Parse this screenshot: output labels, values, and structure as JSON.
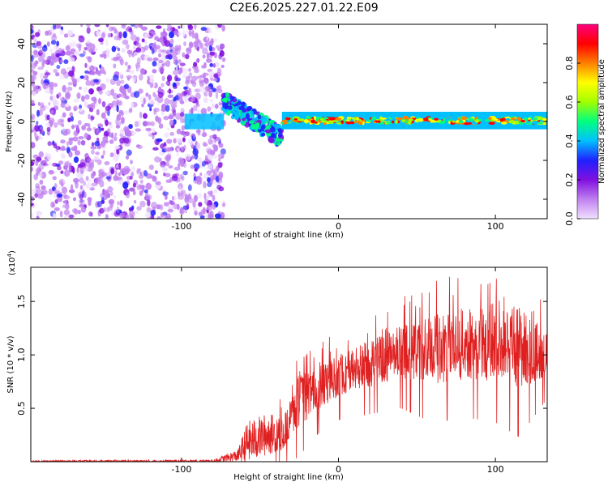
{
  "title": "C2E6.2025.227.01.22.E09",
  "chart_data": [
    {
      "type": "heatmap",
      "xlabel": "Height of straight line (km)",
      "ylabel": "Frequency (Hz)",
      "xlim": [
        -196,
        133
      ],
      "ylim": [
        -50,
        50
      ],
      "xticks": [
        -100,
        0,
        100
      ],
      "yticks": [
        -40,
        -20,
        0,
        20,
        40
      ],
      "colorbar": {
        "label": "Normalized spectral amplitude",
        "range": [
          0,
          1
        ],
        "ticks": [
          "0.0",
          "0.2",
          "0.4",
          "0.6",
          "0.8"
        ],
        "colors": [
          "#f0e0ff",
          "#c080f0",
          "#8010e0",
          "#2020ff",
          "#00c0ff",
          "#00ff80",
          "#a0ff00",
          "#ffff00",
          "#ff8000",
          "#ff0000",
          "#ff0080"
        ]
      },
      "regions": [
        {
          "name": "noise",
          "x": [
            -196,
            -73
          ],
          "freq": [
            -50,
            50
          ],
          "amplitude": [
            0.02,
            0.15
          ]
        },
        {
          "name": "onset",
          "x": [
            -73,
            -36
          ],
          "freq_start": 10,
          "freq_end": -8,
          "amplitude": [
            0.2,
            0.55
          ]
        },
        {
          "name": "steady",
          "x": [
            -36,
            133
          ],
          "freq": [
            -1,
            2
          ],
          "amplitude": [
            0.4,
            0.95
          ]
        }
      ]
    },
    {
      "type": "line",
      "xlabel": "Height of straight line (km)",
      "ylabel": "SNR (10 * v/v)",
      "y_multiplier": "(x10",
      "y_exponent": "4",
      "xlim": [
        -196,
        133
      ],
      "ylim": [
        0,
        1.82
      ],
      "xticks": [
        -100,
        0,
        100
      ],
      "yticks": [
        "0.5",
        "1.0",
        "1.5"
      ],
      "series": [
        {
          "color": "#e02020",
          "envelope": [
            {
              "x": -196,
              "base": 0.0,
              "amp": 0.02
            },
            {
              "x": -80,
              "base": 0.0,
              "amp": 0.03
            },
            {
              "x": -64,
              "base": 0.04,
              "amp": 0.12
            },
            {
              "x": -58,
              "base": 0.12,
              "amp": 0.4
            },
            {
              "x": -45,
              "base": 0.2,
              "amp": 0.4
            },
            {
              "x": -35,
              "base": 0.22,
              "amp": 0.3
            },
            {
              "x": -25,
              "base": 0.5,
              "amp": 0.5
            },
            {
              "x": -15,
              "base": 0.6,
              "amp": 0.4
            },
            {
              "x": 0,
              "base": 0.75,
              "amp": 0.4
            },
            {
              "x": 20,
              "base": 0.85,
              "amp": 0.45
            },
            {
              "x": 40,
              "base": 0.95,
              "amp": 0.5
            },
            {
              "x": 60,
              "base": 0.95,
              "amp": 0.65
            },
            {
              "x": 80,
              "base": 1.0,
              "amp": 0.65
            },
            {
              "x": 100,
              "base": 1.0,
              "amp": 0.7
            },
            {
              "x": 115,
              "base": 0.95,
              "amp": 0.8
            },
            {
              "x": 133,
              "base": 0.95,
              "amp": 0.4
            }
          ]
        }
      ]
    }
  ]
}
